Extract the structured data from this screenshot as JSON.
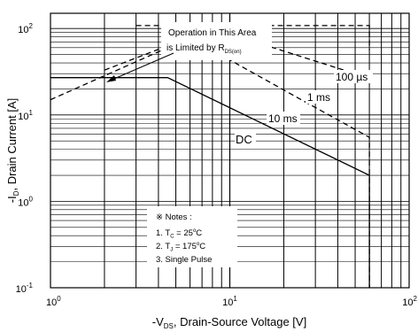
{
  "chart_data": {
    "type": "line",
    "scale": "log-log",
    "grid": true,
    "xlabel": "-V",
    "xlabel_sub": "DS",
    "xlabel_rest": ", Drain-Source Voltage [V]",
    "ylabel": "-I",
    "ylabel_sub": "D",
    "ylabel_rest": ", Drain Current [A]",
    "xlim": [
      1,
      100
    ],
    "ylim": [
      0.1,
      150
    ],
    "x_ticks": [
      {
        "value": 1,
        "base": "10",
        "exp": "0"
      },
      {
        "value": 10,
        "base": "10",
        "exp": "1"
      },
      {
        "value": 100,
        "base": "10",
        "exp": "2"
      }
    ],
    "y_ticks": [
      {
        "value": 0.1,
        "base": "10",
        "exp": "-1"
      },
      {
        "value": 1,
        "base": "10",
        "exp": "0"
      },
      {
        "value": 10,
        "base": "10",
        "exp": "1"
      },
      {
        "value": 100,
        "base": "10",
        "exp": "2"
      }
    ],
    "series": [
      {
        "name": "DC",
        "style": "solid",
        "points": [
          [
            1,
            27
          ],
          [
            4.5,
            27
          ],
          [
            60,
            2
          ],
          [
            60,
            0.1
          ]
        ]
      },
      {
        "name": "10 ms",
        "style": "dashed",
        "points": [
          [
            1,
            15
          ],
          [
            6,
            78
          ],
          [
            25,
            15
          ],
          [
            60,
            5.5
          ],
          [
            60,
            0.1
          ]
        ]
      },
      {
        "name": "1 ms",
        "style": "dashed",
        "points": [
          [
            2,
            33
          ],
          [
            8,
            100
          ],
          [
            50,
            30
          ],
          [
            60,
            24
          ]
        ]
      },
      {
        "name": "100 µs",
        "style": "dashed",
        "points": [
          [
            3,
            108
          ],
          [
            60,
            108
          ],
          [
            60,
            56
          ]
        ]
      }
    ],
    "annotations": {
      "area_line1": "Operation in This Area",
      "area_line2": "is Limited by R",
      "area_sub": "DS(on)",
      "notes_title": "※ Notes :",
      "notes": [
        {
          "prefix": "1. T",
          "sub": "C",
          "text": " = 25",
          "sup": "o",
          "unit": "C"
        },
        {
          "prefix": "2. T",
          "sub": "J",
          "text": " = 175",
          "sup": "o",
          "unit": "C"
        },
        {
          "prefix": "3. Single Pulse",
          "sub": "",
          "text": "",
          "sup": "",
          "unit": ""
        }
      ]
    }
  }
}
